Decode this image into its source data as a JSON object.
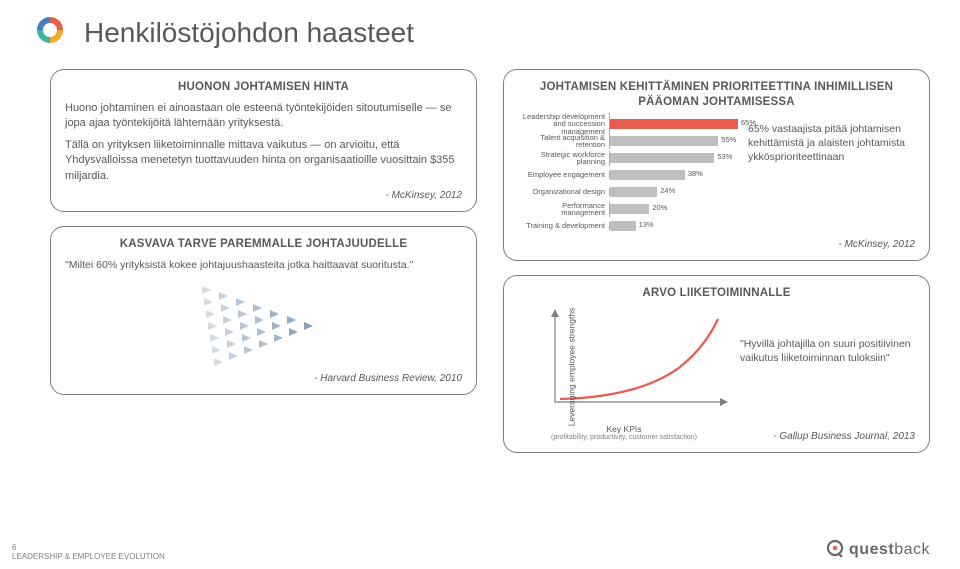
{
  "page": {
    "title": "Henkilöstöjohdon haasteet",
    "number": "6",
    "footer_tag": "LEADERSHIP & EMPLOYEE EVOLUTION"
  },
  "logo_colors": {
    "blue": "#4a7ebb",
    "orange": "#f6a723",
    "teal": "#3bb6a6",
    "red": "#e85b4f"
  },
  "card1": {
    "title": "HUONON JOHTAMISEN HINTA",
    "p1": "Huono johtaminen ei ainoastaan ole esteenä työntekijöiden sitoutumiselle — se jopa ajaa työntekijöitä lähtemään yrityksestä.",
    "p2": "Tällä on yrityksen liiketoiminnalle mittava vaikutus — on arvioitu, että Yhdysvalloissa menetetyn tuottavuuden hinta on organisaatioille vuosittain $355 miljardia.",
    "cite": "- McKinsey, 2012"
  },
  "card2": {
    "title": "KASVAVA TARVE PAREMMALLE JOHTAJUUDELLE",
    "quote": "\"Miltei 60% yrityksistä kokee johtajuushaasteita jotka haittaavat suoritusta.\"",
    "cite": "- Harvard Business Review, 2010",
    "triangle_color": "#7f9bb5"
  },
  "card3": {
    "title": "JOHTAMISEN KEHITTÄMINEN PRIORITEETTINA INHIMILLISEN PÄÄOMAN JOHTAMISESSA",
    "aside": "65% vastaajista pitää johtamisen kehittämistä ja alaisten johtamista ykkösprioriteettinaan",
    "cite": "- McKinsey, 2012",
    "chart": {
      "type": "bar",
      "max": 65,
      "highlight_color": "#e85b4f",
      "bar_color": "#bfbfbf",
      "rows": [
        {
          "label": "Leadership development and succession management",
          "value": 65,
          "hl": true
        },
        {
          "label": "Talent acquisition & retention",
          "value": 55,
          "hl": false
        },
        {
          "label": "Strategic workforce planning",
          "value": 53,
          "hl": false
        },
        {
          "label": "Employee engagement",
          "value": 38,
          "hl": false
        },
        {
          "label": "Organizational design",
          "value": 24,
          "hl": false
        },
        {
          "label": "Performance management",
          "value": 20,
          "hl": false
        },
        {
          "label": "Training & development",
          "value": 13,
          "hl": false
        }
      ]
    }
  },
  "card4": {
    "title": "ARVO LIIKETOIMINNALLE",
    "y_label": "Leveraging employee strengths",
    "x_label": "Key KPIs",
    "x_sub": "(profitability, productivity, customer satisfaction)",
    "aside": "\"Hyvillä johtajilla on suuri positiivinen vaikutus liiketoiminnan tuloksiin\"",
    "cite": "- Gallup Business Journal, 2013",
    "curve_color": "#e85b4f",
    "axis_color": "#7f7f7f"
  },
  "brand": {
    "name_bold": "quest",
    "name_rest": "back"
  }
}
